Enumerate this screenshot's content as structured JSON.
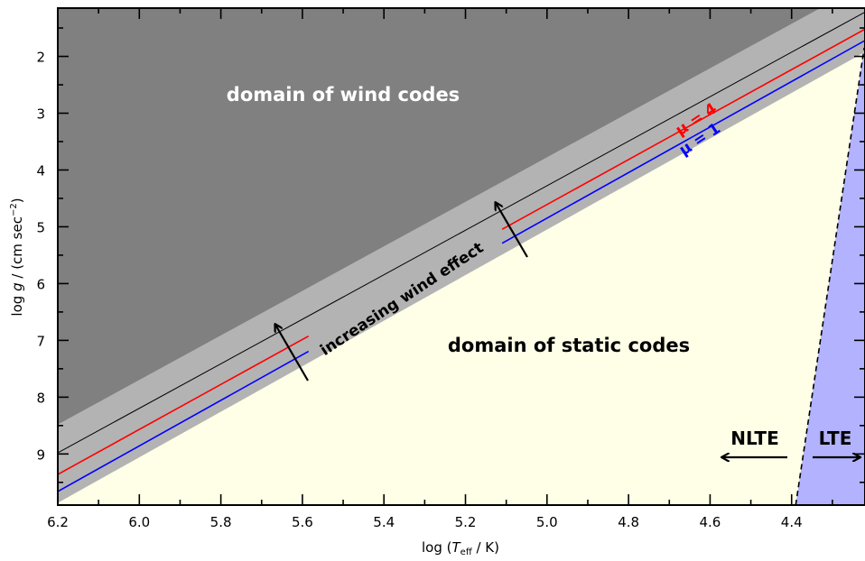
{
  "chart_data": {
    "type": "diagram",
    "xlabel_prefix": "log (",
    "xlabel_var": "T",
    "xlabel_sub": "eff",
    "xlabel_suffix": " / K)",
    "ylabel_prefix": "log ",
    "ylabel_var": "g",
    "ylabel_mid": " / (cm sec",
    "ylabel_sup": "−2",
    "ylabel_suffix": ")",
    "xlim": [
      6.2,
      4.22
    ],
    "ylim": [
      9.9,
      1.15
    ],
    "x_ticks": [
      "6.2",
      "6.0",
      "5.8",
      "5.6",
      "5.4",
      "5.2",
      "5.0",
      "4.8",
      "4.6",
      "4.4"
    ],
    "y_ticks": [
      "2",
      "3",
      "4",
      "5",
      "6",
      "7",
      "8",
      "9"
    ],
    "regions": {
      "wind": "domain of wind codes",
      "static": "domain of static codes",
      "nlte": "NLTE",
      "lte": "LTE"
    },
    "annotations": {
      "wind_effect": "increasing wind effect",
      "mu_red": "μ = 4",
      "mu_blue": "μ = 1"
    },
    "lines": [
      {
        "name": "black boundary",
        "x": [
          6.2,
          4.22
        ],
        "y": [
          8.98,
          1.22
        ]
      },
      {
        "name": "μ = 4",
        "x": [
          6.2,
          4.22
        ],
        "y": [
          9.36,
          1.52
        ]
      },
      {
        "name": "μ = 1",
        "x": [
          6.2,
          4.22
        ],
        "y": [
          9.66,
          1.72
        ]
      }
    ],
    "lte_boundary": {
      "x": [
        4.39,
        4.222
      ],
      "y": [
        9.9,
        1.85
      ]
    },
    "colors": {
      "wind_region": "#808080",
      "transition_band": "#b3b3b3",
      "static_region": "#ffffe8",
      "lte_region": "#b2b2ff",
      "mu_red": "#ff0000",
      "mu_blue": "#0000ff"
    }
  }
}
